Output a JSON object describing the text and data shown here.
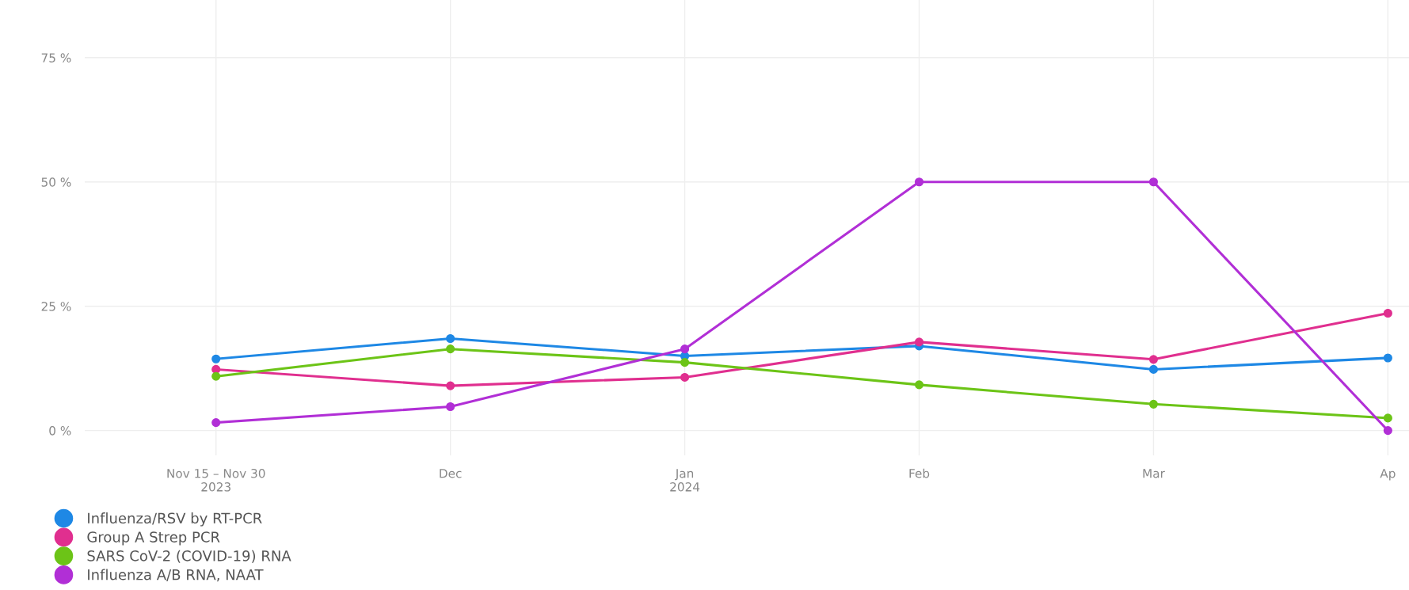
{
  "chart_data": {
    "type": "line",
    "categories": [
      "Nov 15 – Nov 30\n2023",
      "Dec",
      "Jan\n2024",
      "Feb",
      "Mar",
      "Ap"
    ],
    "series": [
      {
        "name": "Influenza/RSV by RT-PCR",
        "color": "#1e88e5",
        "values": [
          14.4,
          18.5,
          15,
          17,
          12.3,
          14.6
        ]
      },
      {
        "name": "Group A Strep PCR",
        "color": "#e02f8f",
        "values": [
          12.3,
          9,
          10.7,
          17.8,
          14.3,
          23.6
        ]
      },
      {
        "name": "SARS CoV-2 (COVID-19) RNA",
        "color": "#6cc417",
        "values": [
          10.9,
          16.4,
          13.7,
          9.2,
          5.3,
          2.5
        ]
      },
      {
        "name": "Influenza A/B RNA, NAAT",
        "color": "#b12fd6",
        "values": [
          1.6,
          4.8,
          16.4,
          50,
          50,
          0
        ]
      }
    ],
    "ylim": [
      -5,
      86.6
    ],
    "yticks": [
      {
        "value": 0,
        "label": "0 %"
      },
      {
        "value": 25,
        "label": "25 %"
      },
      {
        "value": 50,
        "label": "50 %"
      },
      {
        "value": 75,
        "label": "75 %"
      }
    ],
    "grid": true,
    "legend": "bottom",
    "marker": "circle",
    "line_style": "solid"
  }
}
